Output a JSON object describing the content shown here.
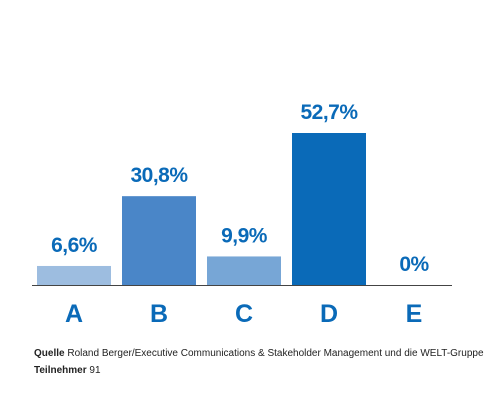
{
  "chart_data": {
    "type": "bar",
    "categories": [
      "A",
      "B",
      "C",
      "D",
      "E"
    ],
    "values": [
      6.6,
      30.8,
      9.9,
      52.7,
      0
    ],
    "value_labels": [
      "6,6%",
      "30,8%",
      "9,9%",
      "52,7%",
      "0%"
    ],
    "colors": [
      "#9dbde0",
      "#4a86c8",
      "#77a6d6",
      "#0a6ab8",
      "#0a6ab8"
    ],
    "source_label": "Quelle",
    "source": "Roland Berger/Executive Communications & Stakeholder Management und die WELT-Gruppe",
    "participants_label": "Teilnehmer",
    "participants": "91"
  }
}
